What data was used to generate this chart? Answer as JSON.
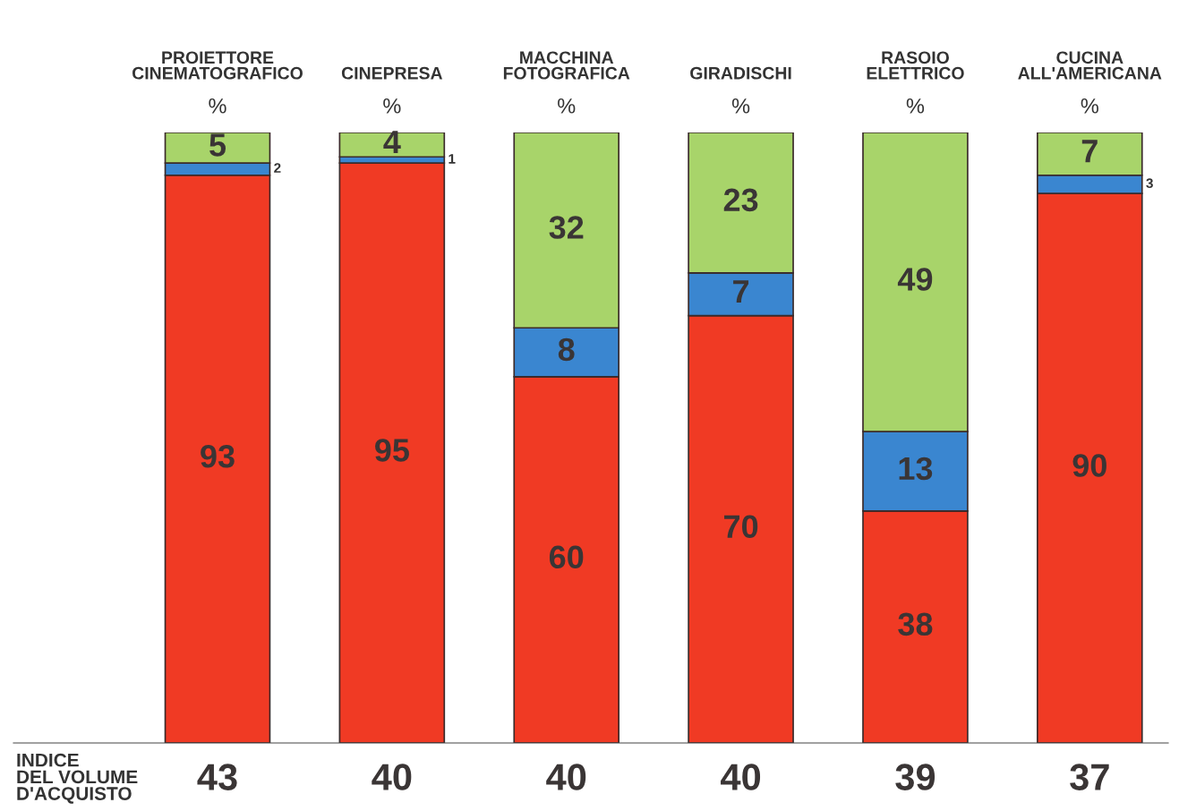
{
  "chart_data": {
    "type": "bar",
    "stacked": true,
    "categories": [
      "PROIETTORE\nCINEMATOGRAFICO",
      "CINEPRESA",
      "MACCHINA\nFOTOGRAFICA",
      "GIRADISCHI",
      "RASOIO\nELETTRICO",
      "CUCINA\nALL'AMERICANA"
    ],
    "series": [
      {
        "color": "#f03a24",
        "values": [
          93,
          95,
          60,
          70,
          38,
          90
        ]
      },
      {
        "color": "#3a86d0",
        "values": [
          2,
          1,
          8,
          7,
          13,
          3
        ]
      },
      {
        "color": "#a8d46a",
        "values": [
          5,
          4,
          32,
          23,
          49,
          7
        ]
      }
    ],
    "data_labels": true,
    "annotations": [
      "%",
      "%",
      "%",
      "%",
      "%",
      "%",
      "INDICE\nDEL VOLUME\nD'ACQUISTO",
      "43",
      "40",
      "40",
      "40",
      "39",
      "37"
    ]
  }
}
